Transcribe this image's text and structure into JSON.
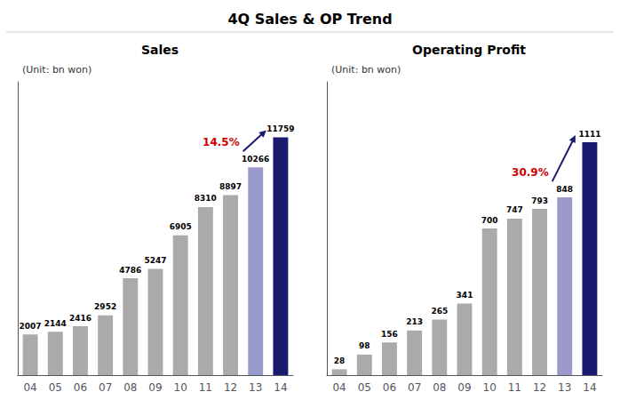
{
  "title": "4Q Sales & OP Trend",
  "chart_data": [
    {
      "type": "bar",
      "title": "Sales",
      "categories": [
        "04",
        "05",
        "06",
        "07",
        "08",
        "09",
        "10",
        "11",
        "12",
        "13",
        "14"
      ],
      "values": [
        2007,
        2144,
        2416,
        2952,
        4786,
        5247,
        6905,
        8310,
        8897,
        10266,
        11759
      ],
      "colors": [
        "#aaaaaa",
        "#aaaaaa",
        "#aaaaaa",
        "#aaaaaa",
        "#aaaaaa",
        "#aaaaaa",
        "#aaaaaa",
        "#aaaaaa",
        "#aaaaaa",
        "#9999cc",
        "#1a1a6e"
      ],
      "ylim": [
        0,
        14500
      ],
      "grid": false,
      "tick_labels": "x",
      "data_labels": true,
      "annotations": [
        {
          "text": "(Unit: bn won)"
        },
        {
          "text": "14.5%",
          "color": "#cc0000",
          "arrow": {
            "from": "13",
            "to": "14",
            "color": "#1a1a6e"
          }
        }
      ]
    },
    {
      "type": "bar",
      "title": "Operating Profit",
      "categories": [
        "04",
        "05",
        "06",
        "07",
        "08",
        "09",
        "10",
        "11",
        "12",
        "13",
        "14"
      ],
      "values": [
        28,
        98,
        156,
        213,
        265,
        341,
        700,
        747,
        793,
        848,
        1111
      ],
      "colors": [
        "#aaaaaa",
        "#aaaaaa",
        "#aaaaaa",
        "#aaaaaa",
        "#aaaaaa",
        "#aaaaaa",
        "#aaaaaa",
        "#aaaaaa",
        "#aaaaaa",
        "#9999cc",
        "#1a1a6e"
      ],
      "ylim": [
        0,
        1400
      ],
      "grid": false,
      "tick_labels": "x",
      "data_labels": true,
      "annotations": [
        {
          "text": "(Unit: bn won)"
        },
        {
          "text": "30.9%",
          "color": "#cc0000",
          "arrow": {
            "from": "13",
            "to": "14",
            "color": "#1a1a6e"
          }
        }
      ]
    }
  ]
}
